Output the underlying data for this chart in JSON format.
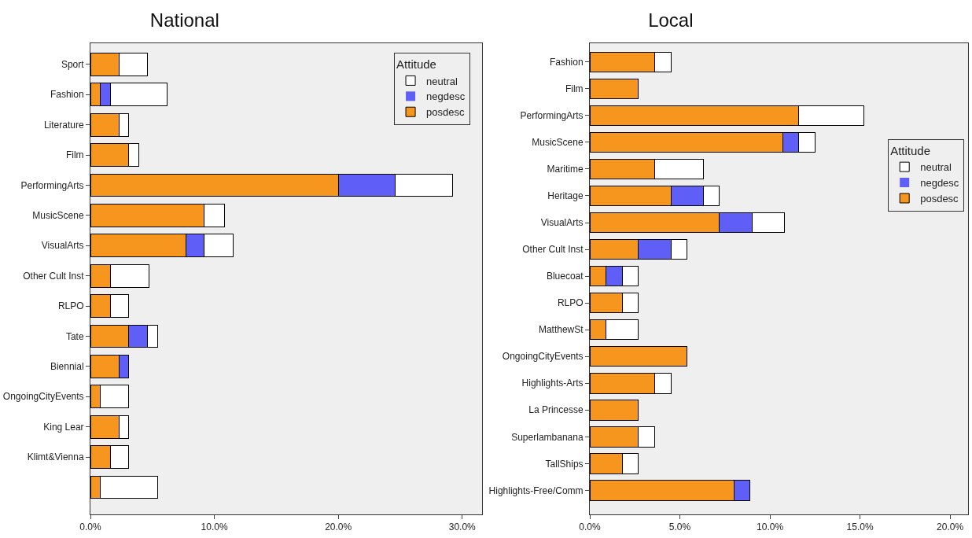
{
  "chart_data": [
    {
      "type": "bar",
      "title": "National",
      "orientation": "horizontal",
      "stacked": true,
      "legend_title": "Attitude",
      "legend": "top right",
      "grid": false,
      "categories": [
        "Sport",
        "Fashion",
        "Literature",
        "Film",
        "PerformingArts",
        "MusicScene",
        "VisualArts",
        "Other Cult Inst",
        "RLPO",
        "Tate",
        "Biennial",
        "OngoingCityEvents",
        "King Lear",
        "Klimt&Vienna",
        null
      ],
      "series": [
        {
          "name": "posdesc",
          "color": "#f7961f",
          "values": [
            2.3,
            0.8,
            2.3,
            3.1,
            20.0,
            9.2,
            7.7,
            1.6,
            1.6,
            3.1,
            2.3,
            0.8,
            2.3,
            1.6,
            0.8
          ]
        },
        {
          "name": "negdesc",
          "color": "#5f5ff7",
          "values": [
            0,
            0.8,
            0,
            0,
            4.6,
            0,
            1.5,
            0,
            0,
            1.5,
            0.8,
            0,
            0,
            0,
            0
          ]
        },
        {
          "name": "neutral",
          "color": "#ffffff",
          "values": [
            2.3,
            4.6,
            0.8,
            0.8,
            4.6,
            1.6,
            2.3,
            3.1,
            1.5,
            0.8,
            0,
            2.3,
            0.8,
            1.5,
            4.6
          ]
        }
      ],
      "xlim": [
        0,
        31.6
      ],
      "xticks": [
        {
          "value": 0,
          "label": "0.0%"
        },
        {
          "value": 10,
          "label": "10.0%"
        },
        {
          "value": 20,
          "label": "20.0%"
        },
        {
          "value": 30,
          "label": "30.0%"
        }
      ]
    },
    {
      "type": "bar",
      "title": "Local",
      "orientation": "horizontal",
      "stacked": true,
      "legend_title": "Attitude",
      "legend": "right",
      "grid": false,
      "categories": [
        "Fashion",
        "Film",
        "PerformingArts",
        "MusicScene",
        "Maritime",
        "Heritage",
        "VisualArts",
        "Other Cult Inst",
        "Bluecoat",
        "RLPO",
        "MatthewSt",
        "OngoingCityEvents",
        "Highlights-Arts",
        "La Princesse",
        "Superlambanana",
        "TallShips",
        "Highlights-Free/Comm"
      ],
      "series": [
        {
          "name": "posdesc",
          "color": "#f7961f",
          "values": [
            3.6,
            2.7,
            11.6,
            10.7,
            3.6,
            4.5,
            7.2,
            2.7,
            0.9,
            1.8,
            0.9,
            5.4,
            3.6,
            2.7,
            2.7,
            1.8,
            8.0
          ]
        },
        {
          "name": "negdesc",
          "color": "#5f5ff7",
          "values": [
            0,
            0,
            0,
            0.9,
            0,
            1.8,
            1.8,
            1.8,
            0.9,
            0,
            0,
            0,
            0,
            0,
            0,
            0,
            0.9
          ]
        },
        {
          "name": "neutral",
          "color": "#ffffff",
          "values": [
            0.9,
            0,
            3.6,
            0.9,
            2.7,
            0.9,
            1.8,
            0.9,
            0.9,
            0.9,
            1.8,
            0,
            0.9,
            0,
            0.9,
            0.9,
            0
          ]
        }
      ],
      "xlim": [
        0,
        21.0
      ],
      "xticks": [
        {
          "value": 0,
          "label": "0.0%"
        },
        {
          "value": 5,
          "label": "5.0%"
        },
        {
          "value": 10,
          "label": "10.0%"
        },
        {
          "value": 15,
          "label": "15.0%"
        },
        {
          "value": 20,
          "label": "20.0%"
        }
      ]
    }
  ]
}
